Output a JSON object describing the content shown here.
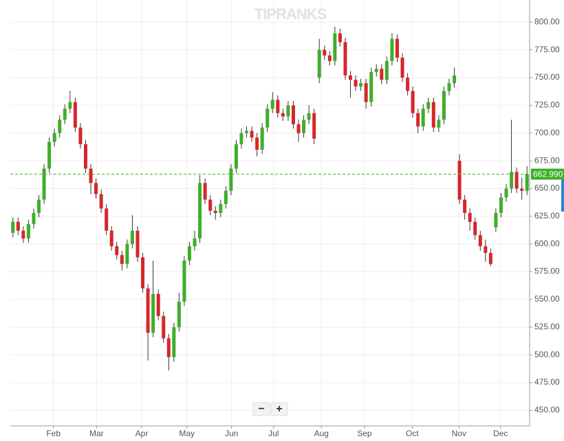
{
  "watermark": "TIPRANKS",
  "zoom_controls": [
    "−",
    "+"
  ],
  "chart_data": {
    "type": "candlestick",
    "up_color": "#3fae2a",
    "down_color": "#d7262b",
    "grid": true,
    "categories": [
      null,
      null,
      null,
      null,
      null,
      null,
      null,
      null,
      null,
      null,
      null,
      null,
      null,
      null,
      null,
      null,
      null,
      null,
      null,
      null,
      null,
      null,
      null,
      null,
      null,
      null,
      null,
      null,
      null,
      null,
      null,
      null,
      null,
      null,
      null,
      null,
      null,
      null,
      null,
      null,
      null,
      null,
      null,
      null,
      null,
      null,
      null,
      null,
      null,
      null,
      null,
      null,
      null,
      null,
      null,
      null,
      null,
      null,
      null,
      null,
      null,
      null,
      null,
      null,
      null,
      null,
      null,
      null,
      null,
      null,
      null,
      null,
      null,
      null,
      null,
      null,
      null,
      null,
      null,
      null,
      null,
      null,
      null,
      null,
      null,
      null,
      null,
      null,
      null,
      null,
      null,
      null,
      null,
      null,
      null,
      null,
      null,
      null,
      null,
      null
    ],
    "open": [
      610,
      620,
      612,
      605,
      618,
      628,
      640,
      668,
      692,
      700,
      712,
      722,
      728,
      705,
      690,
      668,
      655,
      645,
      632,
      612,
      598,
      590,
      582,
      600,
      612,
      588,
      560,
      520,
      555,
      535,
      515,
      498,
      525,
      548,
      585,
      598,
      605,
      655,
      640,
      630,
      628,
      636,
      648,
      668,
      690,
      700,
      702,
      696,
      685,
      705,
      722,
      730,
      718,
      715,
      725,
      708,
      700,
      712,
      718,
      750,
      775,
      770,
      765,
      790,
      782,
      752,
      748,
      742,
      745,
      728,
      755,
      758,
      748,
      765,
      785,
      768,
      750,
      738,
      718,
      706,
      722,
      728,
      705,
      712,
      738,
      745,
      675,
      640,
      628,
      620,
      608,
      598,
      592,
      615,
      628,
      642,
      650,
      665,
      650,
      648
    ],
    "high": [
      624,
      624,
      616,
      622,
      632,
      644,
      672,
      696,
      704,
      716,
      726,
      738,
      732,
      709,
      694,
      672,
      659,
      649,
      636,
      616,
      602,
      594,
      604,
      626,
      616,
      592,
      564,
      585,
      559,
      539,
      519,
      529,
      556,
      589,
      602,
      612,
      662,
      659,
      644,
      634,
      640,
      652,
      672,
      694,
      704,
      706,
      706,
      700,
      709,
      726,
      737,
      734,
      722,
      729,
      729,
      712,
      716,
      725,
      722,
      785,
      779,
      774,
      796,
      794,
      786,
      756,
      752,
      749,
      749,
      759,
      762,
      762,
      769,
      790,
      789,
      772,
      754,
      742,
      722,
      726,
      732,
      732,
      716,
      742,
      749,
      759,
      681,
      644,
      632,
      624,
      612,
      604,
      596,
      632,
      646,
      654,
      712,
      669,
      660,
      670
    ],
    "low": [
      606,
      608,
      601,
      601,
      614,
      624,
      636,
      664,
      688,
      696,
      708,
      718,
      701,
      686,
      664,
      645,
      641,
      628,
      608,
      594,
      586,
      576,
      578,
      596,
      584,
      556,
      495,
      516,
      531,
      511,
      486,
      494,
      521,
      544,
      581,
      594,
      601,
      636,
      626,
      622,
      624,
      632,
      644,
      664,
      686,
      696,
      692,
      679,
      681,
      701,
      718,
      714,
      711,
      711,
      704,
      692,
      696,
      708,
      690,
      745,
      766,
      761,
      761,
      778,
      748,
      732,
      738,
      738,
      722,
      724,
      751,
      744,
      744,
      761,
      764,
      746,
      734,
      714,
      700,
      702,
      718,
      701,
      701,
      708,
      734,
      741,
      636,
      622,
      612,
      604,
      594,
      584,
      580,
      611,
      624,
      638,
      646,
      646,
      640,
      644
    ],
    "close": [
      620,
      612,
      605,
      618,
      628,
      640,
      668,
      692,
      700,
      712,
      722,
      728,
      705,
      690,
      668,
      655,
      645,
      632,
      612,
      598,
      590,
      582,
      600,
      612,
      588,
      560,
      520,
      555,
      535,
      515,
      498,
      525,
      548,
      585,
      598,
      605,
      655,
      640,
      630,
      628,
      636,
      648,
      668,
      690,
      700,
      702,
      696,
      685,
      705,
      722,
      730,
      718,
      715,
      725,
      708,
      700,
      712,
      718,
      695,
      775,
      770,
      765,
      790,
      782,
      752,
      748,
      742,
      745,
      728,
      755,
      758,
      748,
      765,
      785,
      768,
      750,
      738,
      718,
      706,
      722,
      728,
      705,
      712,
      738,
      745,
      752,
      640,
      628,
      620,
      608,
      598,
      592,
      582,
      628,
      642,
      650,
      665,
      650,
      648,
      663
    ],
    "xlim": [
      0,
      100
    ],
    "xticks": [
      {
        "value": 8.3,
        "label": "Feb"
      },
      {
        "value": 16.6,
        "label": "Mar"
      },
      {
        "value": 25.3,
        "label": "Apr"
      },
      {
        "value": 34.0,
        "label": "May"
      },
      {
        "value": 42.6,
        "label": "Jun"
      },
      {
        "value": 50.7,
        "label": "Jul"
      },
      {
        "value": 59.9,
        "label": "Aug"
      },
      {
        "value": 68.2,
        "label": "Sep"
      },
      {
        "value": 77.4,
        "label": "Oct"
      },
      {
        "value": 86.4,
        "label": "Nov"
      },
      {
        "value": 94.4,
        "label": "Dec"
      }
    ],
    "ylim": [
      436,
      820
    ],
    "yticks": [
      {
        "value": 450,
        "label": "450.00"
      },
      {
        "value": 475,
        "label": "475.00"
      },
      {
        "value": 500,
        "label": "500.00"
      },
      {
        "value": 525,
        "label": "525.00"
      },
      {
        "value": 550,
        "label": "550.00"
      },
      {
        "value": 575,
        "label": "575.00"
      },
      {
        "value": 600,
        "label": "600.00"
      },
      {
        "value": 625,
        "label": "625.00"
      },
      {
        "value": 650,
        "label": "650.00"
      },
      {
        "value": 675,
        "label": "675.00"
      },
      {
        "value": 700,
        "label": "700.00"
      },
      {
        "value": 725,
        "label": "725.00"
      },
      {
        "value": 750,
        "label": "750.00"
      },
      {
        "value": 775,
        "label": "775.00"
      },
      {
        "value": 800,
        "label": "800.00"
      }
    ],
    "last_price": {
      "value": 662.99,
      "label": "662.990"
    }
  }
}
